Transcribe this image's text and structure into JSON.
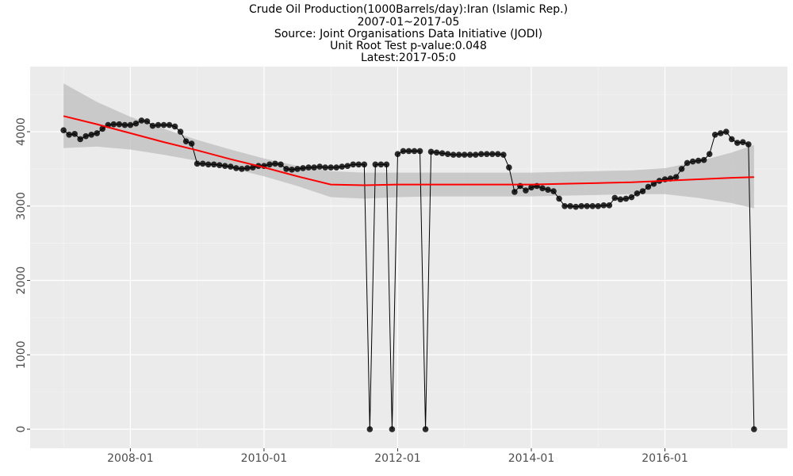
{
  "chart_data": {
    "type": "line",
    "title": "Crude Oil Production(1000Barrels/day):Iran (Islamic Rep.)",
    "subtitle": [
      "2007-01~2017-05",
      "Source: Joint Organisations Data Initiative (JODI)",
      "Unit Root Test p-value:0.048",
      "Latest:2017-05:0"
    ],
    "x": [
      "2007-01",
      "2007-02",
      "2007-03",
      "2007-04",
      "2007-05",
      "2007-06",
      "2007-07",
      "2007-08",
      "2007-09",
      "2007-10",
      "2007-11",
      "2007-12",
      "2008-01",
      "2008-02",
      "2008-03",
      "2008-04",
      "2008-05",
      "2008-06",
      "2008-07",
      "2008-08",
      "2008-09",
      "2008-10",
      "2008-11",
      "2008-12",
      "2009-01",
      "2009-02",
      "2009-03",
      "2009-04",
      "2009-05",
      "2009-06",
      "2009-07",
      "2009-08",
      "2009-09",
      "2009-10",
      "2009-11",
      "2009-12",
      "2010-01",
      "2010-02",
      "2010-03",
      "2010-04",
      "2010-05",
      "2010-06",
      "2010-07",
      "2010-08",
      "2010-09",
      "2010-10",
      "2010-11",
      "2010-12",
      "2011-01",
      "2011-02",
      "2011-03",
      "2011-04",
      "2011-05",
      "2011-06",
      "2011-07",
      "2011-08",
      "2011-09",
      "2011-10",
      "2011-11",
      "2011-12",
      "2012-01",
      "2012-02",
      "2012-03",
      "2012-04",
      "2012-05",
      "2012-06",
      "2012-07",
      "2012-08",
      "2012-09",
      "2012-10",
      "2012-11",
      "2012-12",
      "2013-01",
      "2013-02",
      "2013-03",
      "2013-04",
      "2013-05",
      "2013-06",
      "2013-07",
      "2013-08",
      "2013-09",
      "2013-10",
      "2013-11",
      "2013-12",
      "2014-01",
      "2014-02",
      "2014-03",
      "2014-04",
      "2014-05",
      "2014-06",
      "2014-07",
      "2014-08",
      "2014-09",
      "2014-10",
      "2014-11",
      "2014-12",
      "2015-01",
      "2015-02",
      "2015-03",
      "2015-04",
      "2015-05",
      "2015-06",
      "2015-07",
      "2015-08",
      "2015-09",
      "2015-10",
      "2015-11",
      "2015-12",
      "2016-01",
      "2016-02",
      "2016-03",
      "2016-04",
      "2016-05",
      "2016-06",
      "2016-07",
      "2016-08",
      "2016-09",
      "2016-10",
      "2016-11",
      "2016-12",
      "2017-01",
      "2017-02",
      "2017-03",
      "2017-04",
      "2017-05"
    ],
    "values": [
      4020,
      3960,
      3970,
      3900,
      3940,
      3960,
      3980,
      4040,
      4090,
      4100,
      4100,
      4090,
      4090,
      4110,
      4150,
      4140,
      4080,
      4090,
      4090,
      4090,
      4070,
      4000,
      3870,
      3840,
      3570,
      3570,
      3560,
      3560,
      3550,
      3540,
      3530,
      3510,
      3500,
      3510,
      3520,
      3540,
      3540,
      3560,
      3570,
      3560,
      3500,
      3490,
      3500,
      3510,
      3520,
      3520,
      3530,
      3520,
      3520,
      3520,
      3530,
      3540,
      3560,
      3560,
      3560,
      0,
      3560,
      3560,
      3560,
      0,
      3700,
      3740,
      3740,
      3740,
      3740,
      0,
      3730,
      3720,
      3710,
      3700,
      3690,
      3690,
      3690,
      3690,
      3690,
      3700,
      3700,
      3700,
      3700,
      3690,
      3520,
      3190,
      3270,
      3210,
      3250,
      3270,
      3240,
      3220,
      3200,
      3100,
      3000,
      3000,
      2990,
      3000,
      3000,
      3000,
      3000,
      3010,
      3010,
      3110,
      3090,
      3100,
      3120,
      3170,
      3200,
      3260,
      3300,
      3340,
      3360,
      3370,
      3390,
      3500,
      3580,
      3600,
      3610,
      3620,
      3700,
      3960,
      3980,
      4000,
      3900,
      3850,
      3860,
      3830,
      0
    ],
    "color": "#000000",
    "smooth": {
      "color": "#ff0000",
      "band_color": "#bdbdbd",
      "x": [
        "2007-01",
        "2007-07",
        "2008-01",
        "2008-07",
        "2009-01",
        "2009-07",
        "2010-01",
        "2010-07",
        "2011-01",
        "2011-07",
        "2012-01",
        "2012-07",
        "2013-01",
        "2013-07",
        "2014-01",
        "2014-07",
        "2015-01",
        "2015-07",
        "2016-01",
        "2016-07",
        "2017-01",
        "2017-05"
      ],
      "values": [
        4210,
        4100,
        3980,
        3860,
        3750,
        3630,
        3520,
        3400,
        3290,
        3280,
        3290,
        3290,
        3290,
        3290,
        3290,
        3300,
        3310,
        3320,
        3340,
        3360,
        3380,
        3390
      ],
      "lower": [
        3780,
        3800,
        3760,
        3690,
        3610,
        3510,
        3400,
        3270,
        3120,
        3100,
        3120,
        3130,
        3130,
        3130,
        3130,
        3140,
        3150,
        3160,
        3160,
        3110,
        3040,
        2970
      ],
      "upper": [
        4650,
        4400,
        4200,
        4040,
        3890,
        3760,
        3640,
        3540,
        3470,
        3450,
        3450,
        3450,
        3450,
        3450,
        3450,
        3460,
        3470,
        3480,
        3510,
        3600,
        3720,
        3820
      ]
    },
    "xlim": [
      "2006-07",
      "2017-11"
    ],
    "xticks": [
      "2008-01",
      "2010-01",
      "2012-01",
      "2014-01",
      "2016-01"
    ],
    "ylim": [
      -256,
      4875
    ],
    "yticks": [
      0,
      1000,
      2000,
      3000,
      4000
    ],
    "grid": true
  }
}
